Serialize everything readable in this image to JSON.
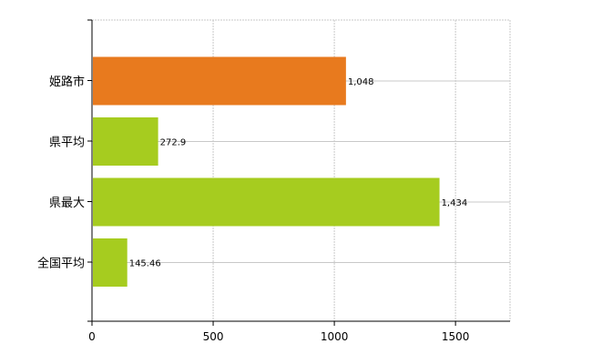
{
  "chart_data": {
    "type": "bar",
    "orientation": "horizontal",
    "categories": [
      "姫路市",
      "県平均",
      "県最大",
      "全国平均"
    ],
    "values": [
      1048,
      272.9,
      1434,
      145.46
    ],
    "data_labels": [
      "1,048",
      "272.9",
      "1,434",
      "145.46"
    ],
    "bar_colors": [
      "#E87A1E",
      "#A6CC1F",
      "#A6CC1F",
      "#A6CC1F"
    ],
    "xlim": [
      0,
      1725
    ],
    "xticks": [
      0,
      500,
      1000,
      1500
    ],
    "xtick_labels": [
      "0",
      "500",
      "1000",
      "1500"
    ],
    "title": "",
    "xlabel": "",
    "ylabel": "",
    "grid": true,
    "legend": "none"
  }
}
